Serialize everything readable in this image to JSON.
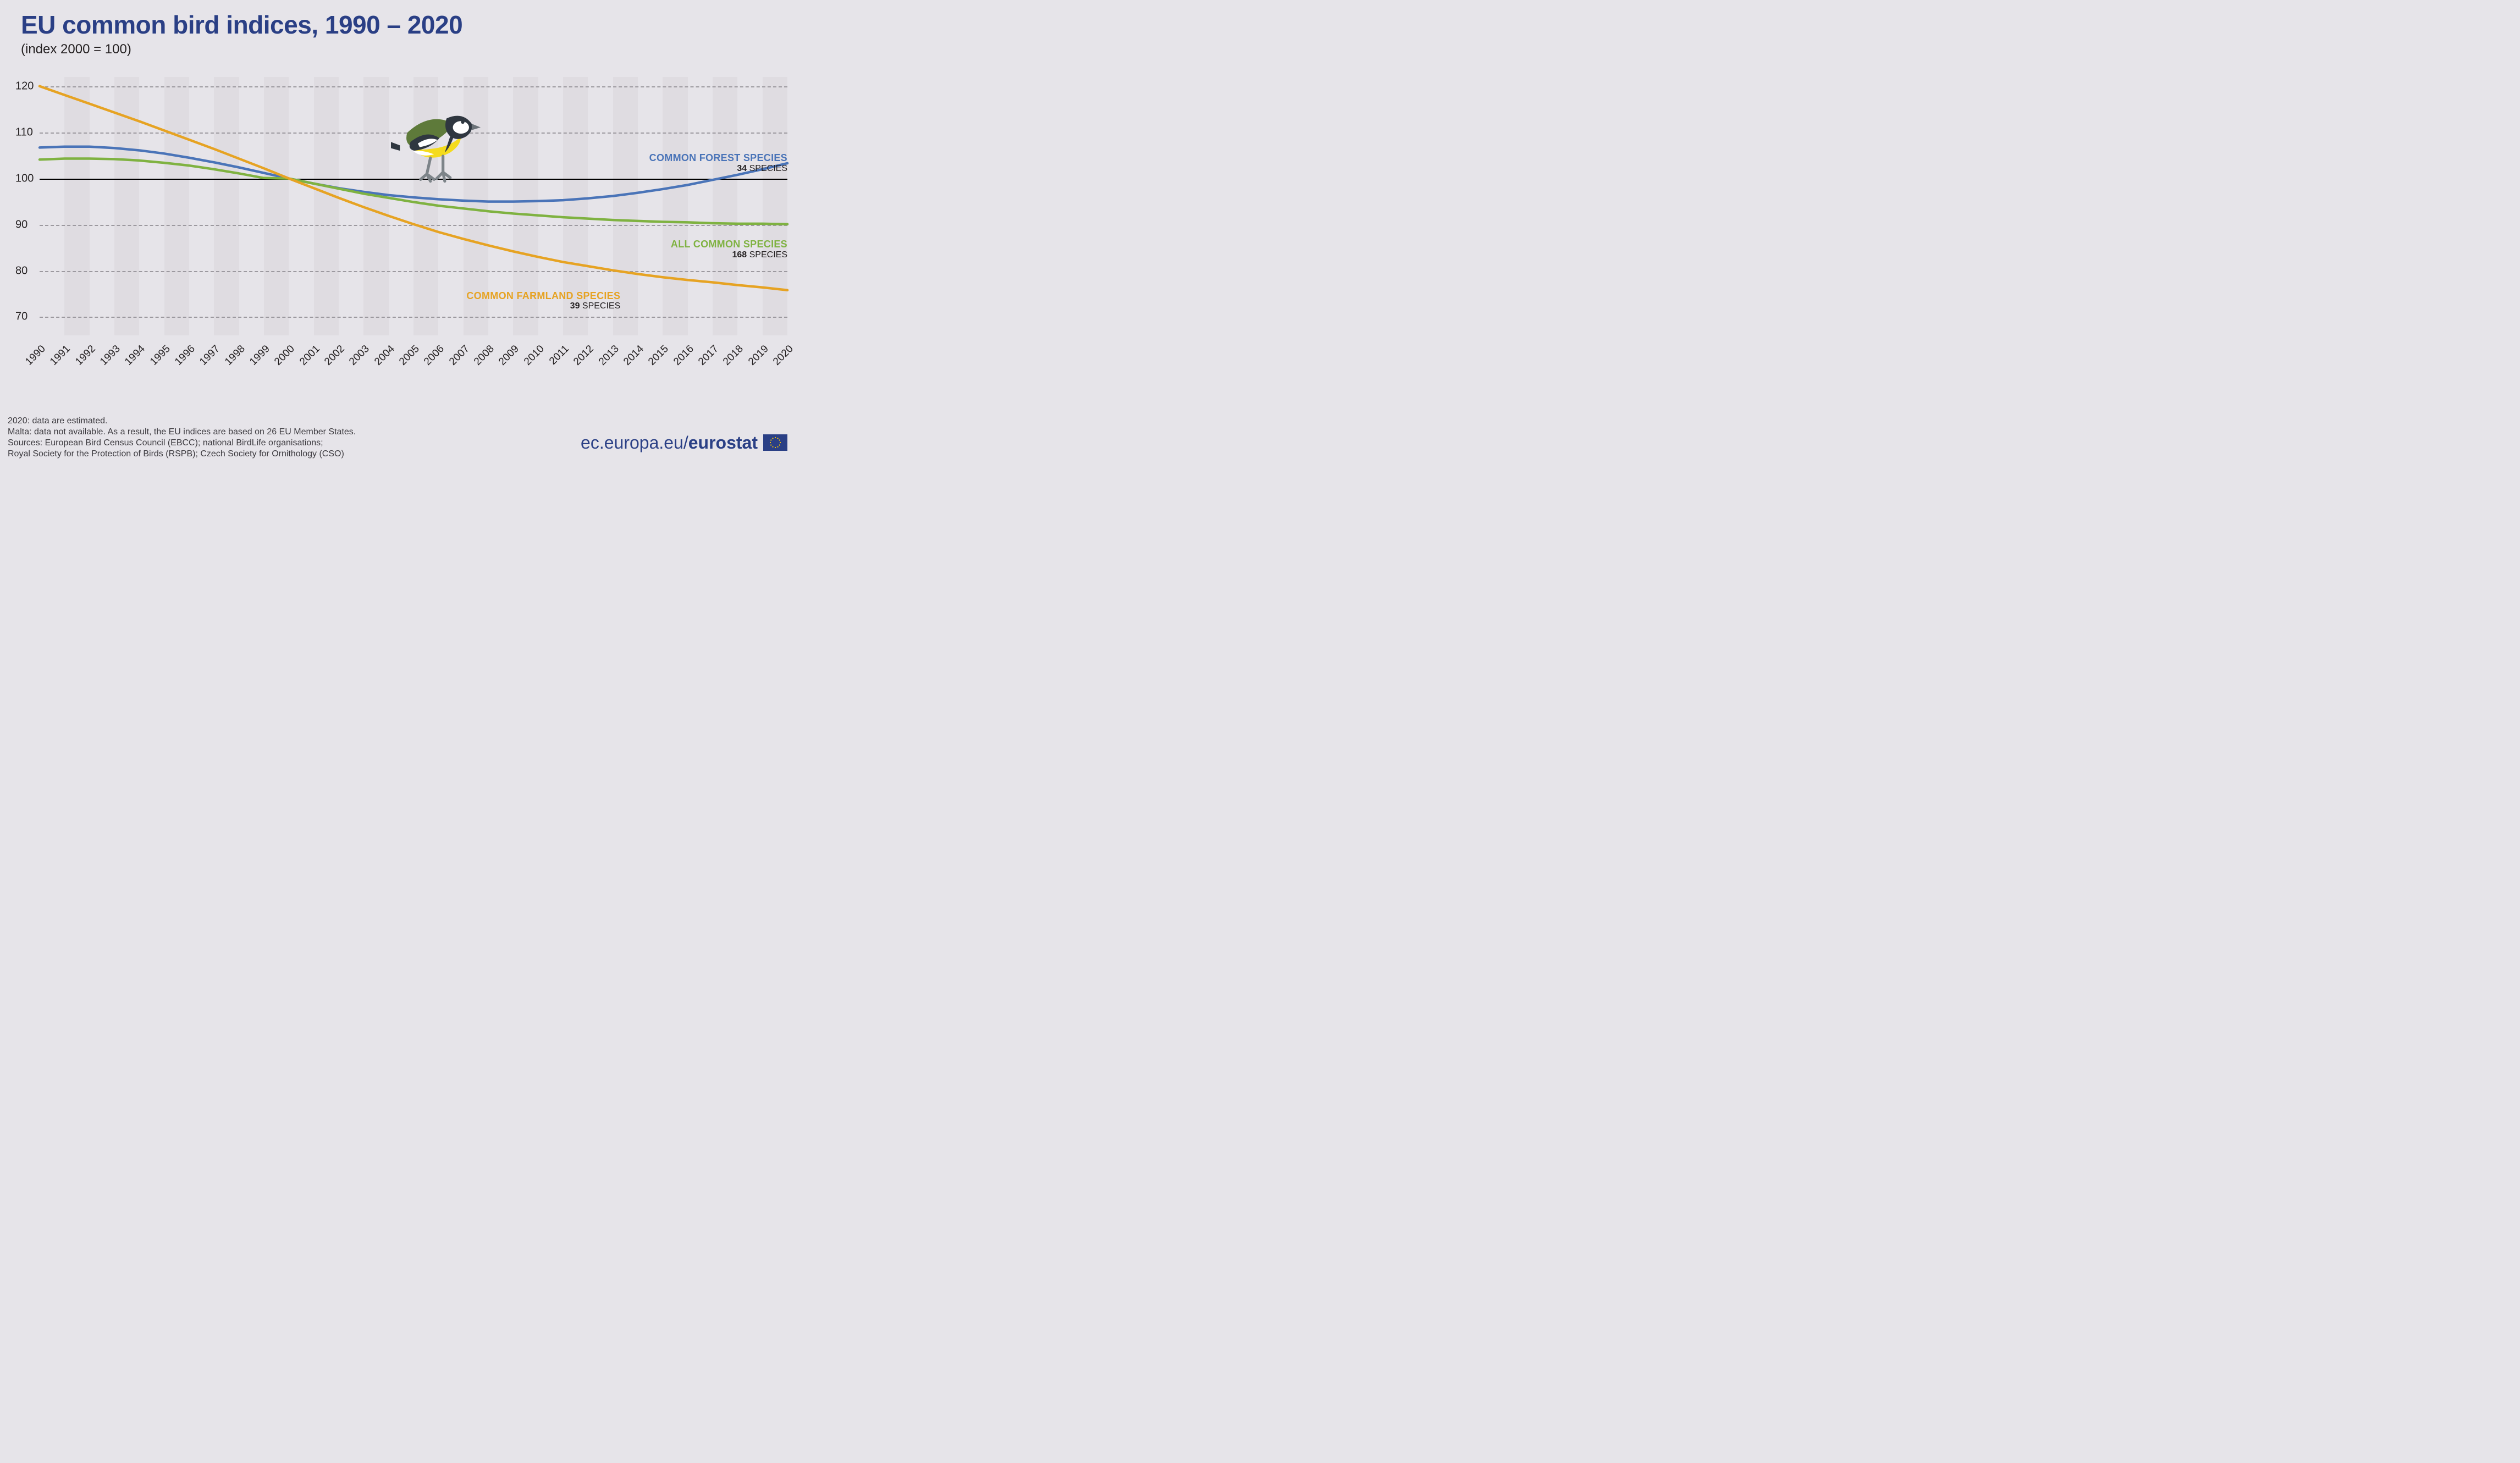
{
  "title": "EU common bird indices, 1990 – 2020",
  "subtitle": "(index 2000 = 100)",
  "chart": {
    "type": "line",
    "background_color": "#e6e4e9",
    "stripe_alt_color": "#dfdce1",
    "grid_color": "#9c999f",
    "baseline_color": "#000000",
    "title_color": "#2a3f85",
    "text_color": "#231f20",
    "title_fontsize": 46,
    "subtitle_fontsize": 24,
    "axis_fontsize": 20,
    "xlim": [
      1990,
      2020
    ],
    "ylim": [
      66,
      122
    ],
    "yticks": [
      70,
      80,
      90,
      100,
      110,
      120
    ],
    "xticks": [
      1990,
      1991,
      1992,
      1993,
      1994,
      1995,
      1996,
      1997,
      1998,
      1999,
      2000,
      2001,
      2002,
      2003,
      2004,
      2005,
      2006,
      2007,
      2008,
      2009,
      2010,
      2011,
      2012,
      2013,
      2014,
      2015,
      2016,
      2017,
      2018,
      2019,
      2020
    ],
    "line_width": 4.5,
    "series": [
      {
        "key": "forest",
        "label": "COMMON FOREST SPECIES",
        "count_num": "34",
        "count_word": "SPECIES",
        "color": "#4a74b8",
        "values": [
          106.7,
          106.9,
          106.9,
          106.6,
          106.1,
          105.4,
          104.5,
          103.5,
          102.4,
          101.2,
          100.0,
          98.9,
          97.9,
          97.1,
          96.4,
          95.9,
          95.5,
          95.2,
          95.0,
          95.0,
          95.1,
          95.3,
          95.7,
          96.2,
          96.9,
          97.7,
          98.6,
          99.7,
          100.8,
          102.0,
          103.3
        ],
        "label_anchor_y": 105.5,
        "label_align_x": 2020
      },
      {
        "key": "all",
        "label": "ALL COMMON SPECIES",
        "count_num": "168",
        "count_word": "SPECIES",
        "color": "#7fb241",
        "values": [
          104.1,
          104.3,
          104.3,
          104.2,
          103.9,
          103.4,
          102.8,
          102.0,
          101.1,
          100.1,
          100.0,
          98.9,
          97.8,
          96.7,
          95.8,
          94.9,
          94.1,
          93.5,
          92.9,
          92.4,
          92.0,
          91.6,
          91.3,
          91.0,
          90.8,
          90.6,
          90.5,
          90.3,
          90.2,
          90.2,
          90.1
        ],
        "label_anchor_y": 86.8,
        "label_align_x": 2020
      },
      {
        "key": "farmland",
        "label": "COMMON FARMLAND SPECIES",
        "count_num": "39",
        "count_word": "SPECIES",
        "color": "#e6a323",
        "values": [
          120.0,
          118.1,
          116.2,
          114.3,
          112.4,
          110.4,
          108.4,
          106.4,
          104.3,
          102.2,
          100.0,
          97.9,
          95.8,
          93.8,
          91.9,
          90.1,
          88.4,
          86.9,
          85.5,
          84.2,
          83.0,
          81.9,
          81.0,
          80.1,
          79.3,
          78.6,
          78.0,
          77.5,
          76.9,
          76.4,
          75.8
        ],
        "label_anchor_y": 75.7,
        "label_align_x": 2013.3
      }
    ]
  },
  "footer_lines": [
    "2020: data are estimated.",
    "Malta: data not available. As a result, the EU indices are based on 26 EU Member States.",
    "Sources: European Bird Census Council (EBCC); national BirdLife organisations;",
    "Royal Society for the Protection of Birds (RSPB); Czech Society for Ornithology (CSO)"
  ],
  "brand": {
    "prefix": "ec.europa.eu/",
    "name": "eurostat",
    "color": "#2a3f85",
    "flag_bg": "#2a3f85",
    "flag_star": "#ffcc00"
  },
  "bird": {
    "x": 2004.1,
    "y_bottom": 100,
    "width_years": 3.6,
    "colors": {
      "back": "#5e7a3a",
      "head": "#2f3740",
      "cheek": "#ffffff",
      "belly": "#f4db1c",
      "wing_dark": "#2f3740",
      "wing_stripe": "#ffffff",
      "beak": "#6b7278",
      "leg": "#7d8489"
    }
  }
}
